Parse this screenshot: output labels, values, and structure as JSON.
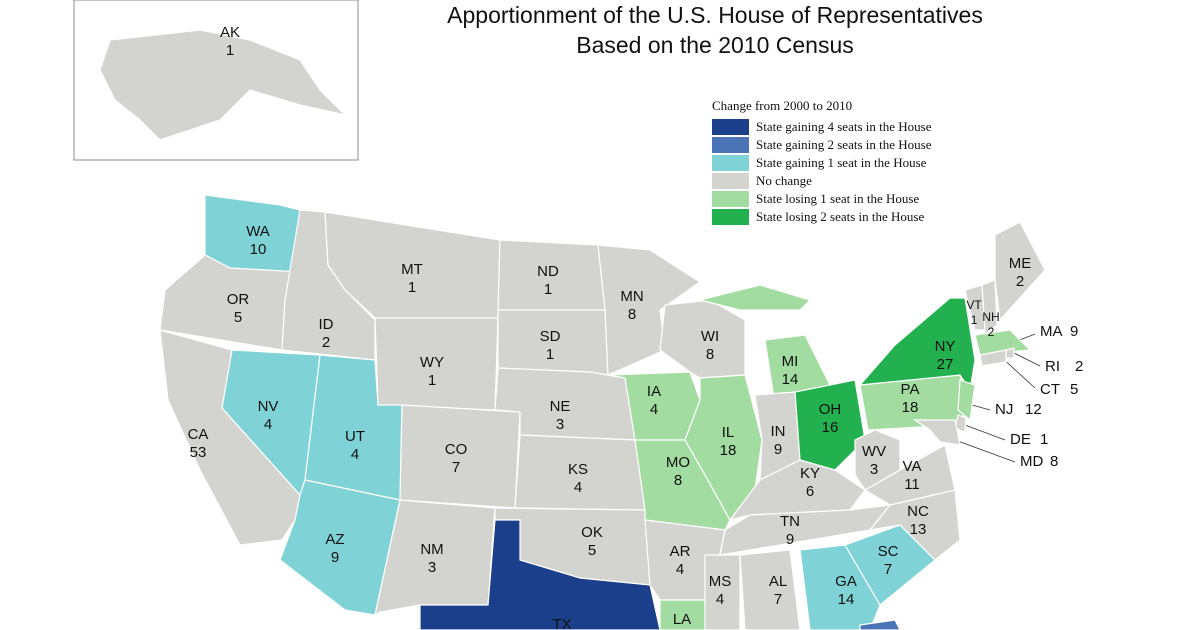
{
  "title": [
    "Apportionment of the U.S. House of Representatives",
    "Based on the 2010 Census"
  ],
  "legend": {
    "heading": "Change from 2000 to 2010",
    "items": [
      {
        "label": "State gaining 4 seats in the House",
        "color": "#1b3f8b"
      },
      {
        "label": "State gaining 2 seats in the House",
        "color": "#4b74b7"
      },
      {
        "label": "State gaining 1 seat in the House",
        "color": "#7fd3d6"
      },
      {
        "label": "No change",
        "color": "#d3d3d0"
      },
      {
        "label": "State losing 1 seat in the House",
        "color": "#a3dca0"
      },
      {
        "label": "State losing 2 seats in the House",
        "color": "#23b04e"
      }
    ]
  },
  "states": [
    {
      "abbr": "AK",
      "seats": 1,
      "legend_index": 3
    },
    {
      "abbr": "WA",
      "seats": 10,
      "legend_index": 2
    },
    {
      "abbr": "OR",
      "seats": 5,
      "legend_index": 3
    },
    {
      "abbr": "CA",
      "seats": 53,
      "legend_index": 3
    },
    {
      "abbr": "NV",
      "seats": 4,
      "legend_index": 2
    },
    {
      "abbr": "ID",
      "seats": 2,
      "legend_index": 3
    },
    {
      "abbr": "MT",
      "seats": 1,
      "legend_index": 3
    },
    {
      "abbr": "WY",
      "seats": 1,
      "legend_index": 3
    },
    {
      "abbr": "UT",
      "seats": 4,
      "legend_index": 2
    },
    {
      "abbr": "AZ",
      "seats": 9,
      "legend_index": 2
    },
    {
      "abbr": "CO",
      "seats": 7,
      "legend_index": 3
    },
    {
      "abbr": "NM",
      "seats": 3,
      "legend_index": 3
    },
    {
      "abbr": "ND",
      "seats": 1,
      "legend_index": 3
    },
    {
      "abbr": "SD",
      "seats": 1,
      "legend_index": 3
    },
    {
      "abbr": "NE",
      "seats": 3,
      "legend_index": 3
    },
    {
      "abbr": "KS",
      "seats": 4,
      "legend_index": 3
    },
    {
      "abbr": "OK",
      "seats": 5,
      "legend_index": 3
    },
    {
      "abbr": "TX",
      "legend_index": 0
    },
    {
      "abbr": "MN",
      "seats": 8,
      "legend_index": 3
    },
    {
      "abbr": "IA",
      "seats": 4,
      "legend_index": 4
    },
    {
      "abbr": "MO",
      "seats": 8,
      "legend_index": 4
    },
    {
      "abbr": "AR",
      "seats": 4,
      "legend_index": 3
    },
    {
      "abbr": "LA",
      "legend_index": 4
    },
    {
      "abbr": "WI",
      "seats": 8,
      "legend_index": 3
    },
    {
      "abbr": "IL",
      "seats": 18,
      "legend_index": 4
    },
    {
      "abbr": "MI",
      "seats": 14,
      "legend_index": 4
    },
    {
      "abbr": "IN",
      "seats": 9,
      "legend_index": 3
    },
    {
      "abbr": "OH",
      "seats": 16,
      "legend_index": 5
    },
    {
      "abbr": "KY",
      "seats": 6,
      "legend_index": 3
    },
    {
      "abbr": "TN",
      "seats": 9,
      "legend_index": 3
    },
    {
      "abbr": "MS",
      "seats": 4,
      "legend_index": 3
    },
    {
      "abbr": "AL",
      "seats": 7,
      "legend_index": 3
    },
    {
      "abbr": "GA",
      "seats": 14,
      "legend_index": 2
    },
    {
      "abbr": "SC",
      "seats": 7,
      "legend_index": 2
    },
    {
      "abbr": "NC",
      "seats": 13,
      "legend_index": 3
    },
    {
      "abbr": "VA",
      "seats": 11,
      "legend_index": 3
    },
    {
      "abbr": "WV",
      "seats": 3,
      "legend_index": 3
    },
    {
      "abbr": "PA",
      "seats": 18,
      "legend_index": 4
    },
    {
      "abbr": "NY",
      "seats": 27,
      "legend_index": 5
    },
    {
      "abbr": "VT",
      "seats": 1,
      "legend_index": 3
    },
    {
      "abbr": "NH",
      "seats": 2,
      "legend_index": 3
    },
    {
      "abbr": "ME",
      "seats": 2,
      "legend_index": 3
    },
    {
      "abbr": "MA",
      "seats": 9,
      "legend_index": 4
    },
    {
      "abbr": "RI",
      "seats": 2,
      "legend_index": 3
    },
    {
      "abbr": "CT",
      "seats": 5,
      "legend_index": 3
    },
    {
      "abbr": "NJ",
      "seats": 12,
      "legend_index": 4
    },
    {
      "abbr": "DE",
      "seats": 1,
      "legend_index": 3
    },
    {
      "abbr": "MD",
      "seats": 8,
      "legend_index": 3
    },
    {
      "legend_index": 1
    }
  ]
}
